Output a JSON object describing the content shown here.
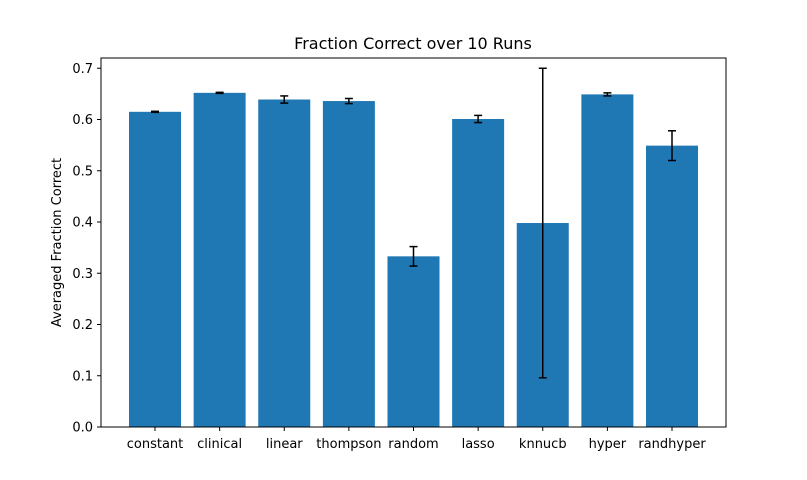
{
  "chart_data": {
    "type": "bar",
    "title": "Fraction Correct over 10 Runs",
    "xlabel": "",
    "ylabel": "Averaged Fraction Correct",
    "categories": [
      "constant",
      "clinical",
      "linear",
      "thompson",
      "random",
      "lasso",
      "knnucb",
      "hyper",
      "randhyper"
    ],
    "values": [
      0.615,
      0.652,
      0.639,
      0.636,
      0.333,
      0.601,
      0.398,
      0.649,
      0.549
    ],
    "errors": [
      0.001,
      0.001,
      0.007,
      0.005,
      0.019,
      0.007,
      0.302,
      0.003,
      0.029
    ],
    "ylim": [
      0,
      0.72
    ],
    "yticks": [
      0.0,
      0.1,
      0.2,
      0.3,
      0.4,
      0.5,
      0.6,
      0.7
    ],
    "ytick_labels": [
      "0.0",
      "0.1",
      "0.2",
      "0.3",
      "0.4",
      "0.5",
      "0.6",
      "0.7"
    ],
    "bar_color": "#1f77b4",
    "error_color": "#000000",
    "grid": false,
    "legend": "none"
  }
}
